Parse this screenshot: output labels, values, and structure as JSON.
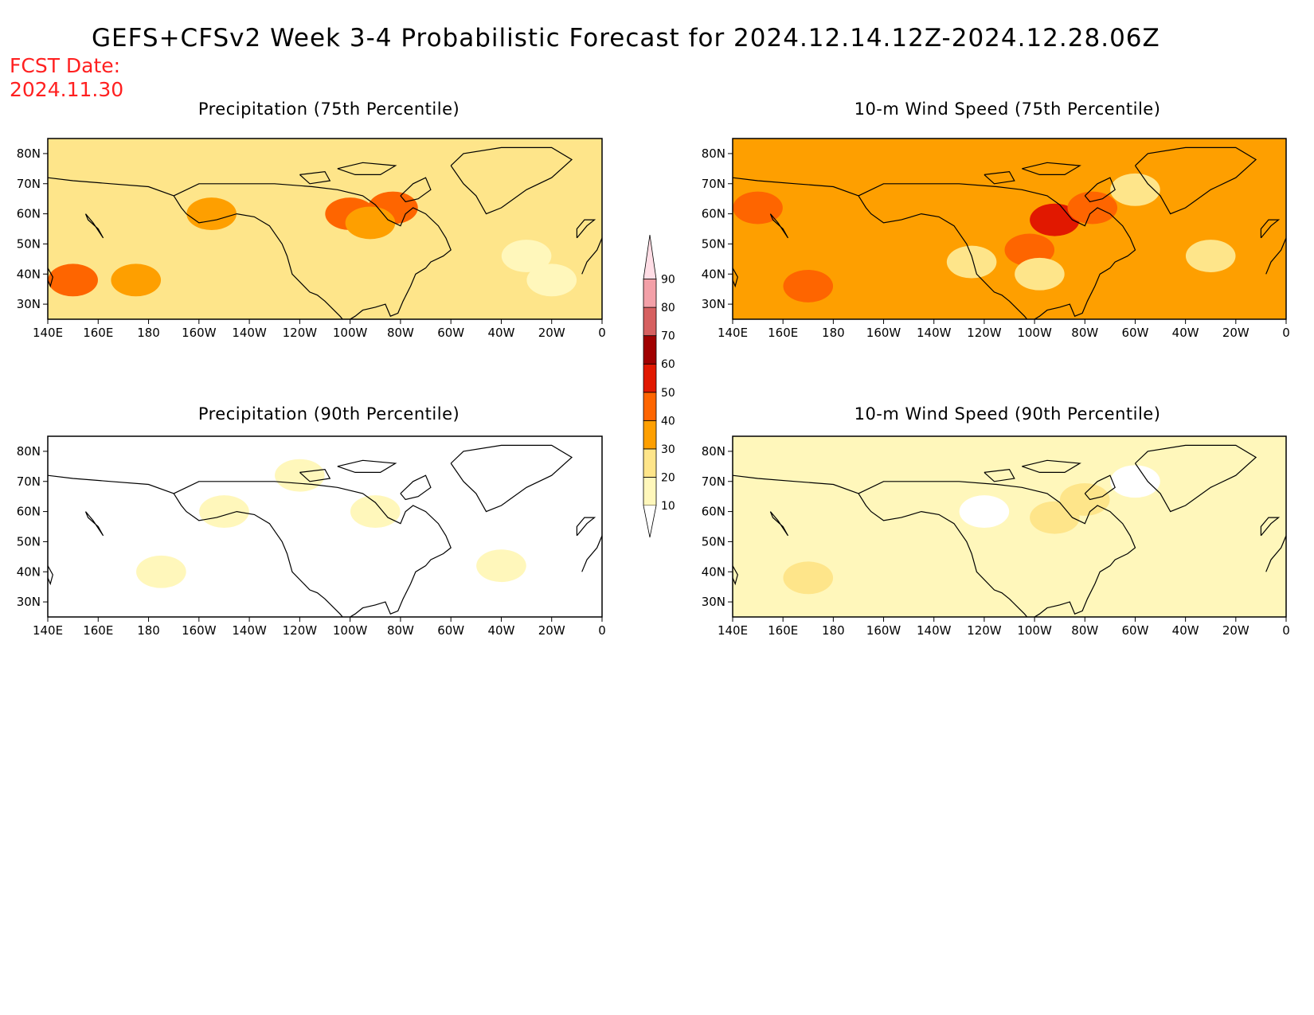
{
  "title": "GEFS+CFSv2 Week 3-4 Probabilistic Forecast for 2024.12.14.12Z-2024.12.28.06Z",
  "fcst_label": "FCST Date:",
  "fcst_value": "2024.11.30",
  "panels": [
    {
      "title": "Precipitation (75th Percentile)",
      "base_level": 20,
      "blobs": [
        {
          "lon": 150,
          "lat": 38,
          "level": 40
        },
        {
          "lon": 175,
          "lat": 38,
          "level": 30
        },
        {
          "lon": 260,
          "lat": 60,
          "level": 40
        },
        {
          "lon": 277,
          "lat": 62,
          "level": 40
        },
        {
          "lon": 268,
          "lat": 57,
          "level": 30
        },
        {
          "lon": 205,
          "lat": 60,
          "level": 30
        },
        {
          "lon": 340,
          "lat": 38,
          "level": 10
        },
        {
          "lon": 330,
          "lat": 46,
          "level": 10
        }
      ]
    },
    {
      "title": "10-m Wind Speed (75th Percentile)",
      "base_level": 30,
      "blobs": [
        {
          "lon": 170,
          "lat": 36,
          "level": 40
        },
        {
          "lon": 268,
          "lat": 58,
          "level": 50
        },
        {
          "lon": 283,
          "lat": 62,
          "level": 40
        },
        {
          "lon": 300,
          "lat": 68,
          "level": 20
        },
        {
          "lon": 258,
          "lat": 48,
          "level": 40
        },
        {
          "lon": 262,
          "lat": 40,
          "level": 20
        },
        {
          "lon": 235,
          "lat": 44,
          "level": 20
        },
        {
          "lon": 330,
          "lat": 46,
          "level": 20
        },
        {
          "lon": 150,
          "lat": 62,
          "level": 40
        }
      ]
    },
    {
      "title": "Precipitation (90th Percentile)",
      "base_level": 0,
      "blobs": [
        {
          "lon": 185,
          "lat": 40,
          "level": 10
        },
        {
          "lon": 240,
          "lat": 72,
          "level": 10
        },
        {
          "lon": 270,
          "lat": 60,
          "level": 10
        },
        {
          "lon": 320,
          "lat": 42,
          "level": 10
        },
        {
          "lon": 210,
          "lat": 60,
          "level": 10
        }
      ]
    },
    {
      "title": "10-m Wind Speed (90th Percentile)",
      "base_level": 10,
      "blobs": [
        {
          "lon": 170,
          "lat": 38,
          "level": 20
        },
        {
          "lon": 268,
          "lat": 58,
          "level": 20
        },
        {
          "lon": 280,
          "lat": 64,
          "level": 20
        },
        {
          "lon": 240,
          "lat": 60,
          "level": 0
        },
        {
          "lon": 300,
          "lat": 70,
          "level": 0
        }
      ]
    }
  ],
  "x_ticks": [
    {
      "lon": 140,
      "label": "140E"
    },
    {
      "lon": 160,
      "label": "160E"
    },
    {
      "lon": 180,
      "label": "180"
    },
    {
      "lon": 200,
      "label": "160W"
    },
    {
      "lon": 220,
      "label": "140W"
    },
    {
      "lon": 240,
      "label": "120W"
    },
    {
      "lon": 260,
      "label": "100W"
    },
    {
      "lon": 280,
      "label": "80W"
    },
    {
      "lon": 300,
      "label": "60W"
    },
    {
      "lon": 320,
      "label": "40W"
    },
    {
      "lon": 340,
      "label": "20W"
    },
    {
      "lon": 360,
      "label": "0"
    }
  ],
  "y_ticks": [
    {
      "lat": 30,
      "label": "30N"
    },
    {
      "lat": 40,
      "label": "40N"
    },
    {
      "lat": 50,
      "label": "50N"
    },
    {
      "lat": 60,
      "label": "60N"
    },
    {
      "lat": 70,
      "label": "70N"
    },
    {
      "lat": 80,
      "label": "80N"
    }
  ],
  "lon_range": [
    140,
    360
  ],
  "lat_range": [
    25,
    85
  ],
  "colorbar": {
    "levels": [
      {
        "value": 10,
        "label": "10",
        "color": "#fff7bb"
      },
      {
        "value": 20,
        "label": "20",
        "color": "#fee58a"
      },
      {
        "value": 30,
        "label": "30",
        "color": "#fe9f00"
      },
      {
        "value": 40,
        "label": "40",
        "color": "#fe6500"
      },
      {
        "value": 50,
        "label": "50",
        "color": "#e11800"
      },
      {
        "value": 60,
        "label": "60",
        "color": "#a00000"
      },
      {
        "value": 70,
        "label": "70",
        "color": "#d66060"
      },
      {
        "value": 80,
        "label": "80",
        "color": "#f3a0a8"
      },
      {
        "value": 90,
        "label": "90",
        "color": "#ffdde5"
      }
    ]
  }
}
